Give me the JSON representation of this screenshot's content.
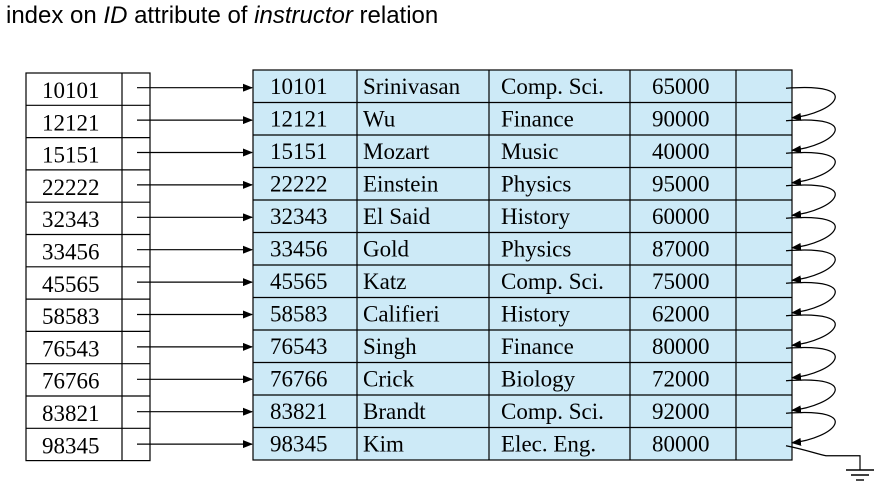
{
  "title": {
    "part1": "index on ",
    "part2": "ID",
    "part3": " attribute of ",
    "part4": "instructor",
    "part5": " relation"
  },
  "colors": {
    "record_fill": "#cdeaf7",
    "index_fill": "#ffffff",
    "line": "#000000"
  },
  "index_entries": [
    "10101",
    "12121",
    "15151",
    "22222",
    "32343",
    "33456",
    "45565",
    "58583",
    "76543",
    "76766",
    "83821",
    "98345"
  ],
  "records": [
    {
      "id": "10101",
      "name": "Srinivasan",
      "dept": "Comp. Sci.",
      "salary": "65000"
    },
    {
      "id": "12121",
      "name": "Wu",
      "dept": "Finance",
      "salary": "90000"
    },
    {
      "id": "15151",
      "name": "Mozart",
      "dept": "Music",
      "salary": "40000"
    },
    {
      "id": "22222",
      "name": "Einstein",
      "dept": "Physics",
      "salary": "95000"
    },
    {
      "id": "32343",
      "name": "El Said",
      "dept": "History",
      "salary": "60000"
    },
    {
      "id": "33456",
      "name": "Gold",
      "dept": "Physics",
      "salary": "87000"
    },
    {
      "id": "45565",
      "name": "Katz",
      "dept": "Comp. Sci.",
      "salary": "75000"
    },
    {
      "id": "58583",
      "name": "Califieri",
      "dept": "History",
      "salary": "62000"
    },
    {
      "id": "76543",
      "name": "Singh",
      "dept": "Finance",
      "salary": "80000"
    },
    {
      "id": "76766",
      "name": "Crick",
      "dept": "Biology",
      "salary": "72000"
    },
    {
      "id": "83821",
      "name": "Brandt",
      "dept": "Comp. Sci.",
      "salary": "92000"
    },
    {
      "id": "98345",
      "name": "Kim",
      "dept": "Elec. Eng.",
      "salary": "80000"
    }
  ]
}
